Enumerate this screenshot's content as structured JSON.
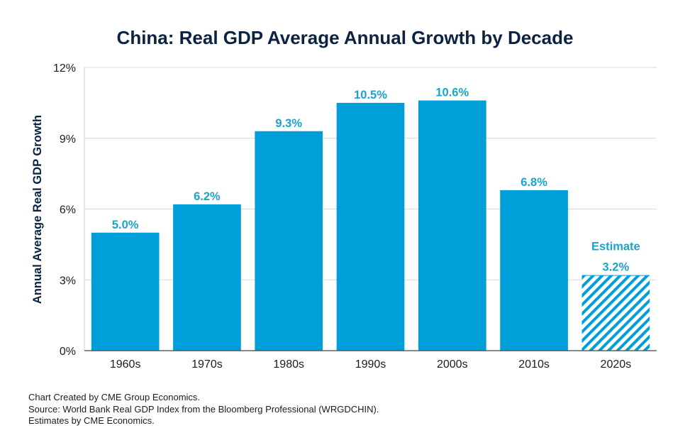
{
  "chart_data": {
    "type": "bar",
    "title": "China: Real GDP Average Annual Growth by Decade",
    "ylabel": "Annual Average Real GDP Growth",
    "xlabel": "",
    "ylim": [
      0,
      12
    ],
    "yticks": [
      0,
      3,
      6,
      9,
      12
    ],
    "ytick_labels": [
      "0%",
      "3%",
      "6%",
      "9%",
      "12%"
    ],
    "grid": true,
    "categories": [
      "1960s",
      "1970s",
      "1980s",
      "1990s",
      "2000s",
      "2010s",
      "2020s"
    ],
    "values": [
      5.0,
      6.2,
      9.3,
      10.5,
      10.6,
      6.8,
      3.2
    ],
    "data_labels": [
      "5.0%",
      "6.2%",
      "9.3%",
      "10.5%",
      "10.6%",
      "6.8%",
      "3.2%"
    ],
    "estimate_index": 6,
    "estimate_label": "Estimate",
    "colors": {
      "bar": "#009fd9",
      "label": "#1aa3cc",
      "grid": "#d9d9d9",
      "axis": "#444444"
    }
  },
  "footnotes": {
    "line1": "Chart Created by CME Group Economics.",
    "line2": "Source: World Bank Real GDP Index from the Bloomberg Professional (WRGDCHIN).",
    "line3": "Estimates by CME Economics."
  }
}
